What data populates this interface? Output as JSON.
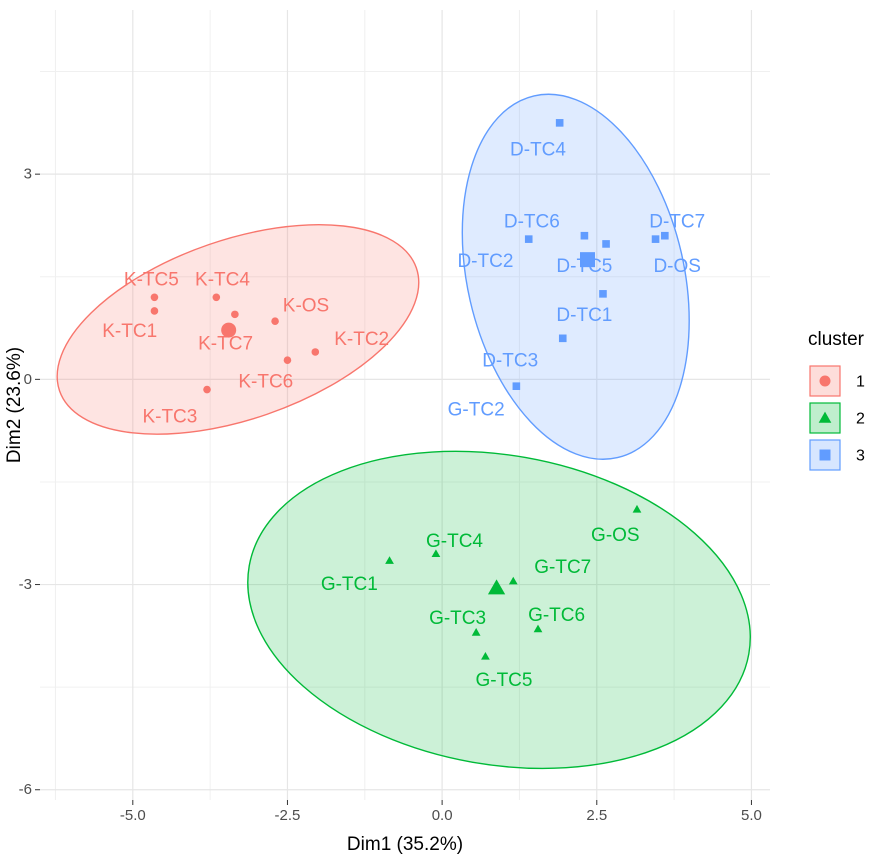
{
  "chart_data": {
    "type": "scatter",
    "xlabel": "Dim1 (35.2%)",
    "ylabel": "Dim2 (23.6%)",
    "xlim": [
      -6.5,
      5.3
    ],
    "ylim": [
      -6.15,
      5.4
    ],
    "xticks": [
      -5.0,
      -2.5,
      0.0,
      2.5,
      5.0
    ],
    "xtick_labels": [
      "-5.0",
      "-2.5",
      "0.0",
      "2.5",
      "5.0"
    ],
    "yticks": [
      -6,
      -3,
      0,
      3
    ],
    "ytick_labels": [
      "-6",
      "-3",
      "0",
      "3"
    ],
    "grid": true,
    "legend": {
      "title": "cluster",
      "position": "right",
      "entries": [
        "1",
        "2",
        "3"
      ]
    },
    "clusters": [
      {
        "name": "1",
        "color": "#F8766D",
        "fill": "#F8766D",
        "shape": "circle",
        "centroid": [
          -3.45,
          0.72
        ],
        "ellipse": {
          "cx": -3.3,
          "cy": 0.73,
          "rx": 3.05,
          "ry": 1.45,
          "angle_deg": -19
        },
        "points": [
          {
            "label": "K-TC5",
            "x": -4.65,
            "y": 1.2,
            "lx": -4.7,
            "ly": 1.45
          },
          {
            "label": "K-TC4",
            "x": -3.65,
            "y": 1.2,
            "lx": -3.55,
            "ly": 1.45
          },
          {
            "label": "K-TC1",
            "x": -4.65,
            "y": 1.0,
            "lx": -5.05,
            "ly": 0.7
          },
          {
            "label": "K-OS",
            "x": -2.7,
            "y": 0.85,
            "lx": -2.2,
            "ly": 1.07
          },
          {
            "label": "K-TC7",
            "x": -3.35,
            "y": 0.95,
            "lx": -3.5,
            "ly": 0.52
          },
          {
            "label": "K-TC2",
            "x": -2.05,
            "y": 0.4,
            "lx": -1.3,
            "ly": 0.58
          },
          {
            "label": "K-TC6",
            "x": -2.5,
            "y": 0.28,
            "lx": -2.85,
            "ly": -0.04
          },
          {
            "label": "K-TC3",
            "x": -3.8,
            "y": -0.15,
            "lx": -4.4,
            "ly": -0.55
          }
        ]
      },
      {
        "name": "2",
        "color": "#00BA38",
        "fill": "#00BA38",
        "shape": "triangle",
        "centroid": [
          0.88,
          -3.05
        ],
        "ellipse": {
          "cx": 0.92,
          "cy": -3.37,
          "rx": 4.1,
          "ry": 2.5,
          "angle_deg": 10
        },
        "points": [
          {
            "label": "G-OS",
            "x": 3.15,
            "y": -1.9,
            "lx": 2.8,
            "ly": -2.28
          },
          {
            "label": "G-TC4",
            "x": -0.1,
            "y": -2.55,
            "lx": 0.2,
            "ly": -2.37
          },
          {
            "label": "G-TC1",
            "x": -0.85,
            "y": -2.65,
            "lx": -1.5,
            "ly": -3.0
          },
          {
            "label": "G-TC7",
            "x": 1.15,
            "y": -2.95,
            "lx": 1.95,
            "ly": -2.75
          },
          {
            "label": "G-TC3",
            "x": 0.55,
            "y": -3.7,
            "lx": 0.25,
            "ly": -3.5
          },
          {
            "label": "G-TC6",
            "x": 1.55,
            "y": -3.65,
            "lx": 1.85,
            "ly": -3.45
          },
          {
            "label": "G-TC5",
            "x": 0.7,
            "y": -4.05,
            "lx": 1.0,
            "ly": -4.4
          }
        ]
      },
      {
        "name": "3",
        "color": "#619CFF",
        "fill": "#619CFF",
        "shape": "square",
        "centroid": [
          2.35,
          1.75
        ],
        "ellipse": {
          "cx": 2.16,
          "cy": 1.5,
          "rx": 3.0,
          "ry": 1.75,
          "angle_deg": 77
        },
        "points": [
          {
            "label": "D-TC4",
            "x": 1.9,
            "y": 3.75,
            "lx": 1.55,
            "ly": 3.35
          },
          {
            "label": "D-TC6",
            "x": 2.3,
            "y": 2.1,
            "lx": 1.45,
            "ly": 2.3
          },
          {
            "label": "D-TC7",
            "x": 3.6,
            "y": 2.1,
            "lx": 3.8,
            "ly": 2.3
          },
          {
            "label": "D-TC2",
            "x": 1.4,
            "y": 2.05,
            "lx": 0.7,
            "ly": 1.72
          },
          {
            "label": "D-TC5",
            "x": 2.65,
            "y": 1.98,
            "lx": 2.3,
            "ly": 1.65
          },
          {
            "label": "D-OS",
            "x": 3.45,
            "y": 2.05,
            "lx": 3.8,
            "ly": 1.65
          },
          {
            "label": "D-TC1",
            "x": 2.6,
            "y": 1.25,
            "lx": 2.3,
            "ly": 0.93
          },
          {
            "label": "D-TC3",
            "x": 1.95,
            "y": 0.6,
            "lx": 1.1,
            "ly": 0.27
          },
          {
            "label": "G-TC2",
            "x": 1.2,
            "y": -0.1,
            "lx": 0.55,
            "ly": -0.45
          }
        ]
      }
    ]
  }
}
